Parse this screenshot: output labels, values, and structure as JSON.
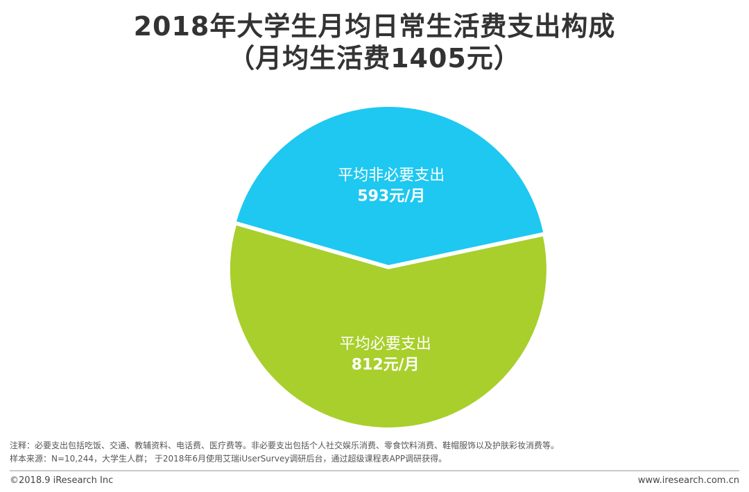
{
  "title": {
    "line1": "2018年大学生月均日常生活费支出构成",
    "line2": "（月均生活费1405元）"
  },
  "chart_data": {
    "type": "pie",
    "total_label": "月均生活费1405元",
    "slices": [
      {
        "name": "平均非必要支出",
        "value": 593,
        "value_label": "593元/月",
        "color": "#1ec8f0"
      },
      {
        "name": "平均必要支出",
        "value": 812,
        "value_label": "812元/月",
        "color": "#a8cf2c"
      }
    ]
  },
  "notes": {
    "line1": "注释：必要支出包括吃饭、交通、教辅资料、电话费、医疗费等。非必要支出包括个人社交娱乐消费、零食饮料消费、鞋帽服饰以及护肤彩妆消费等。",
    "line2": "样本来源：N=10,244，大学生人群；  于2018年6月使用艾瑞iUserSurvey调研后台，通过超级课程表APP调研获得。"
  },
  "footer": {
    "copyright": "©2018.9 iResearch Inc",
    "website": "www.iresearch.com.cn"
  }
}
